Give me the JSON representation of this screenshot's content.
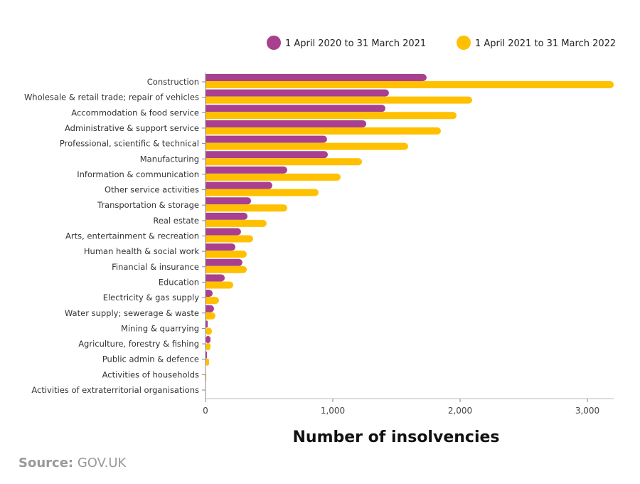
{
  "chart_data": {
    "type": "bar",
    "orientation": "horizontal",
    "title": "",
    "xlabel": "Number of insolvencies",
    "ylabel": "",
    "xlim": [
      0,
      3200
    ],
    "xticks": [
      0,
      1000,
      2000,
      3000
    ],
    "xtick_labels": [
      "0",
      "1,000",
      "2,000",
      "3,000"
    ],
    "grid": false,
    "legend_position": "top-right",
    "categories": [
      "Construction",
      "Wholesale & retail trade; repair of vehicles",
      "Accommodation & food service",
      "Administrative & support service",
      "Professional, scientific & technical",
      "Manufacturing",
      "Information & communication",
      "Other service activities",
      "Transportation & storage",
      "Real estate",
      "Arts, entertainment & recreation",
      "Human health & social work",
      "Financial & insurance",
      "Education",
      "Electricity & gas supply",
      "Water supply; sewerage & waste",
      "Mining & quarrying",
      "Agriculture, forestry & fishing",
      "Public admin & defence",
      "Activities of households",
      "Activities of extraterritorial organisations"
    ],
    "series": [
      {
        "name": "1 April  2020  to  31  March  2021",
        "color": "#a8408f",
        "values": [
          1737,
          1441,
          1413,
          1263,
          955,
          961,
          642,
          525,
          358,
          330,
          279,
          235,
          290,
          151,
          56,
          67,
          17,
          39,
          11,
          0,
          0
        ]
      },
      {
        "name": "1 April 2021 to 31 March 2022",
        "color": "#ffc000",
        "values": [
          3207,
          2095,
          1972,
          1849,
          1592,
          1229,
          1061,
          888,
          642,
          480,
          374,
          324,
          324,
          218,
          106,
          78,
          50,
          39,
          28,
          6,
          0
        ]
      }
    ]
  },
  "source": {
    "label": "Source:",
    "value": "GOV.UK"
  }
}
